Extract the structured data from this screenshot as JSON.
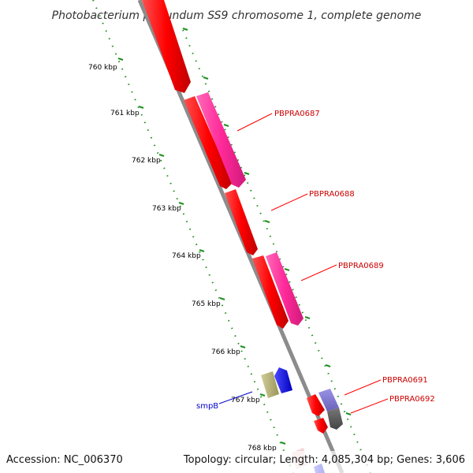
{
  "title": "Photobacterium profundum SS9 chromosome 1, complete genome",
  "footer": {
    "accession": "Accession: NC_006370",
    "summary": "Topology: circular; Length: 4,085,304 bp; Genes: 3,606"
  },
  "ticks": [
    {
      "label": "760 kbp"
    },
    {
      "label": "761 kbp"
    },
    {
      "label": "762 kbp"
    },
    {
      "label": "763 kbp"
    },
    {
      "label": "764 kbp"
    },
    {
      "label": "765 kbp"
    },
    {
      "label": "766 kbp"
    },
    {
      "label": "767 kbp"
    },
    {
      "label": "768 kbp"
    }
  ],
  "gene_labels": [
    {
      "text": "PBPRA0687"
    },
    {
      "text": "PBPRA0688"
    },
    {
      "text": "PBPRA0689"
    },
    {
      "text": "PBPRA0691"
    },
    {
      "text": "PBPRA0692"
    },
    {
      "text": "smpB"
    }
  ],
  "colors": {
    "backbone": "#8c8c8c",
    "cds": "#ff1010",
    "gene_pink": "#ff2a9a",
    "olive": "#b5b07a",
    "blue": "#0000ee",
    "lavender": "#8a82d8",
    "dark_gray": "#555555",
    "tick_green": "#1f8f1f"
  }
}
